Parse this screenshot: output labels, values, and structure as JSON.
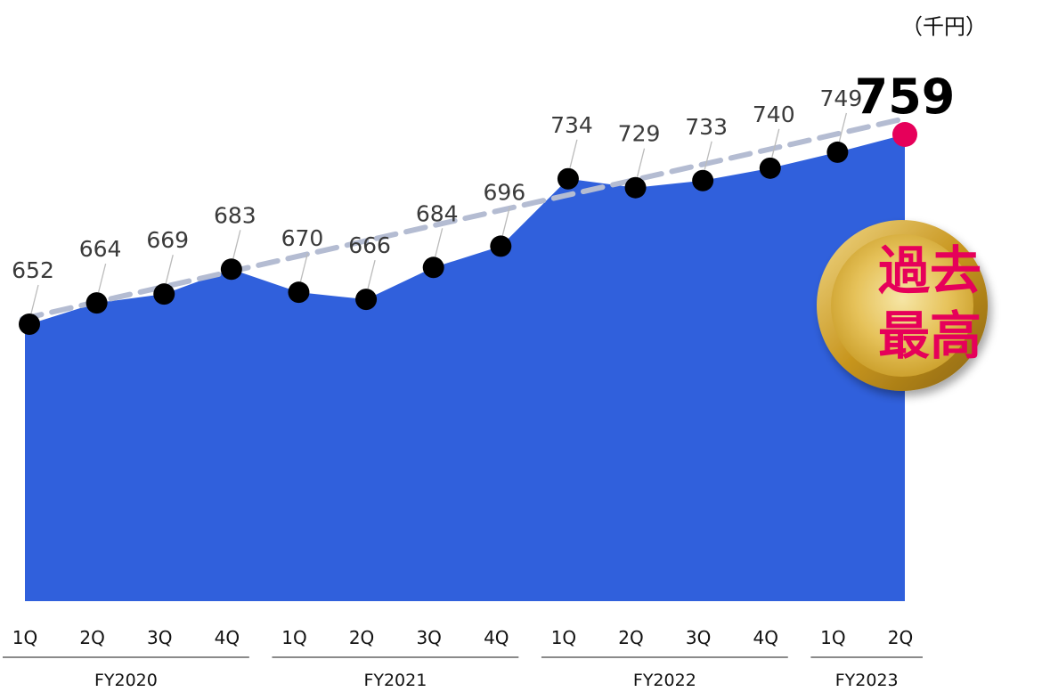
{
  "unit_label": "（千円）",
  "badge": {
    "line1": "過去",
    "line2": "最高"
  },
  "colors": {
    "area": "#3060dc",
    "point": "#000000",
    "highlight": "#e6005a",
    "trend": "#b4bcd2",
    "badge_text": "#e6005a"
  },
  "chart_data": {
    "type": "area",
    "categories": [
      "1Q",
      "2Q",
      "3Q",
      "4Q",
      "1Q",
      "2Q",
      "3Q",
      "4Q",
      "1Q",
      "2Q",
      "3Q",
      "4Q",
      "1Q",
      "2Q"
    ],
    "groups": [
      {
        "label": "FY2020",
        "count": 4
      },
      {
        "label": "FY2021",
        "count": 4
      },
      {
        "label": "FY2022",
        "count": 4
      },
      {
        "label": "FY2023",
        "count": 2
      }
    ],
    "series": [
      {
        "values": [
          652,
          664,
          669,
          683,
          670,
          666,
          684,
          696,
          734,
          729,
          733,
          740,
          749,
          759
        ]
      }
    ],
    "trendline": {
      "style": "dashed",
      "from": 655,
      "to": 768
    },
    "highlight_index": 13,
    "ylim": [
      500,
      770
    ]
  }
}
